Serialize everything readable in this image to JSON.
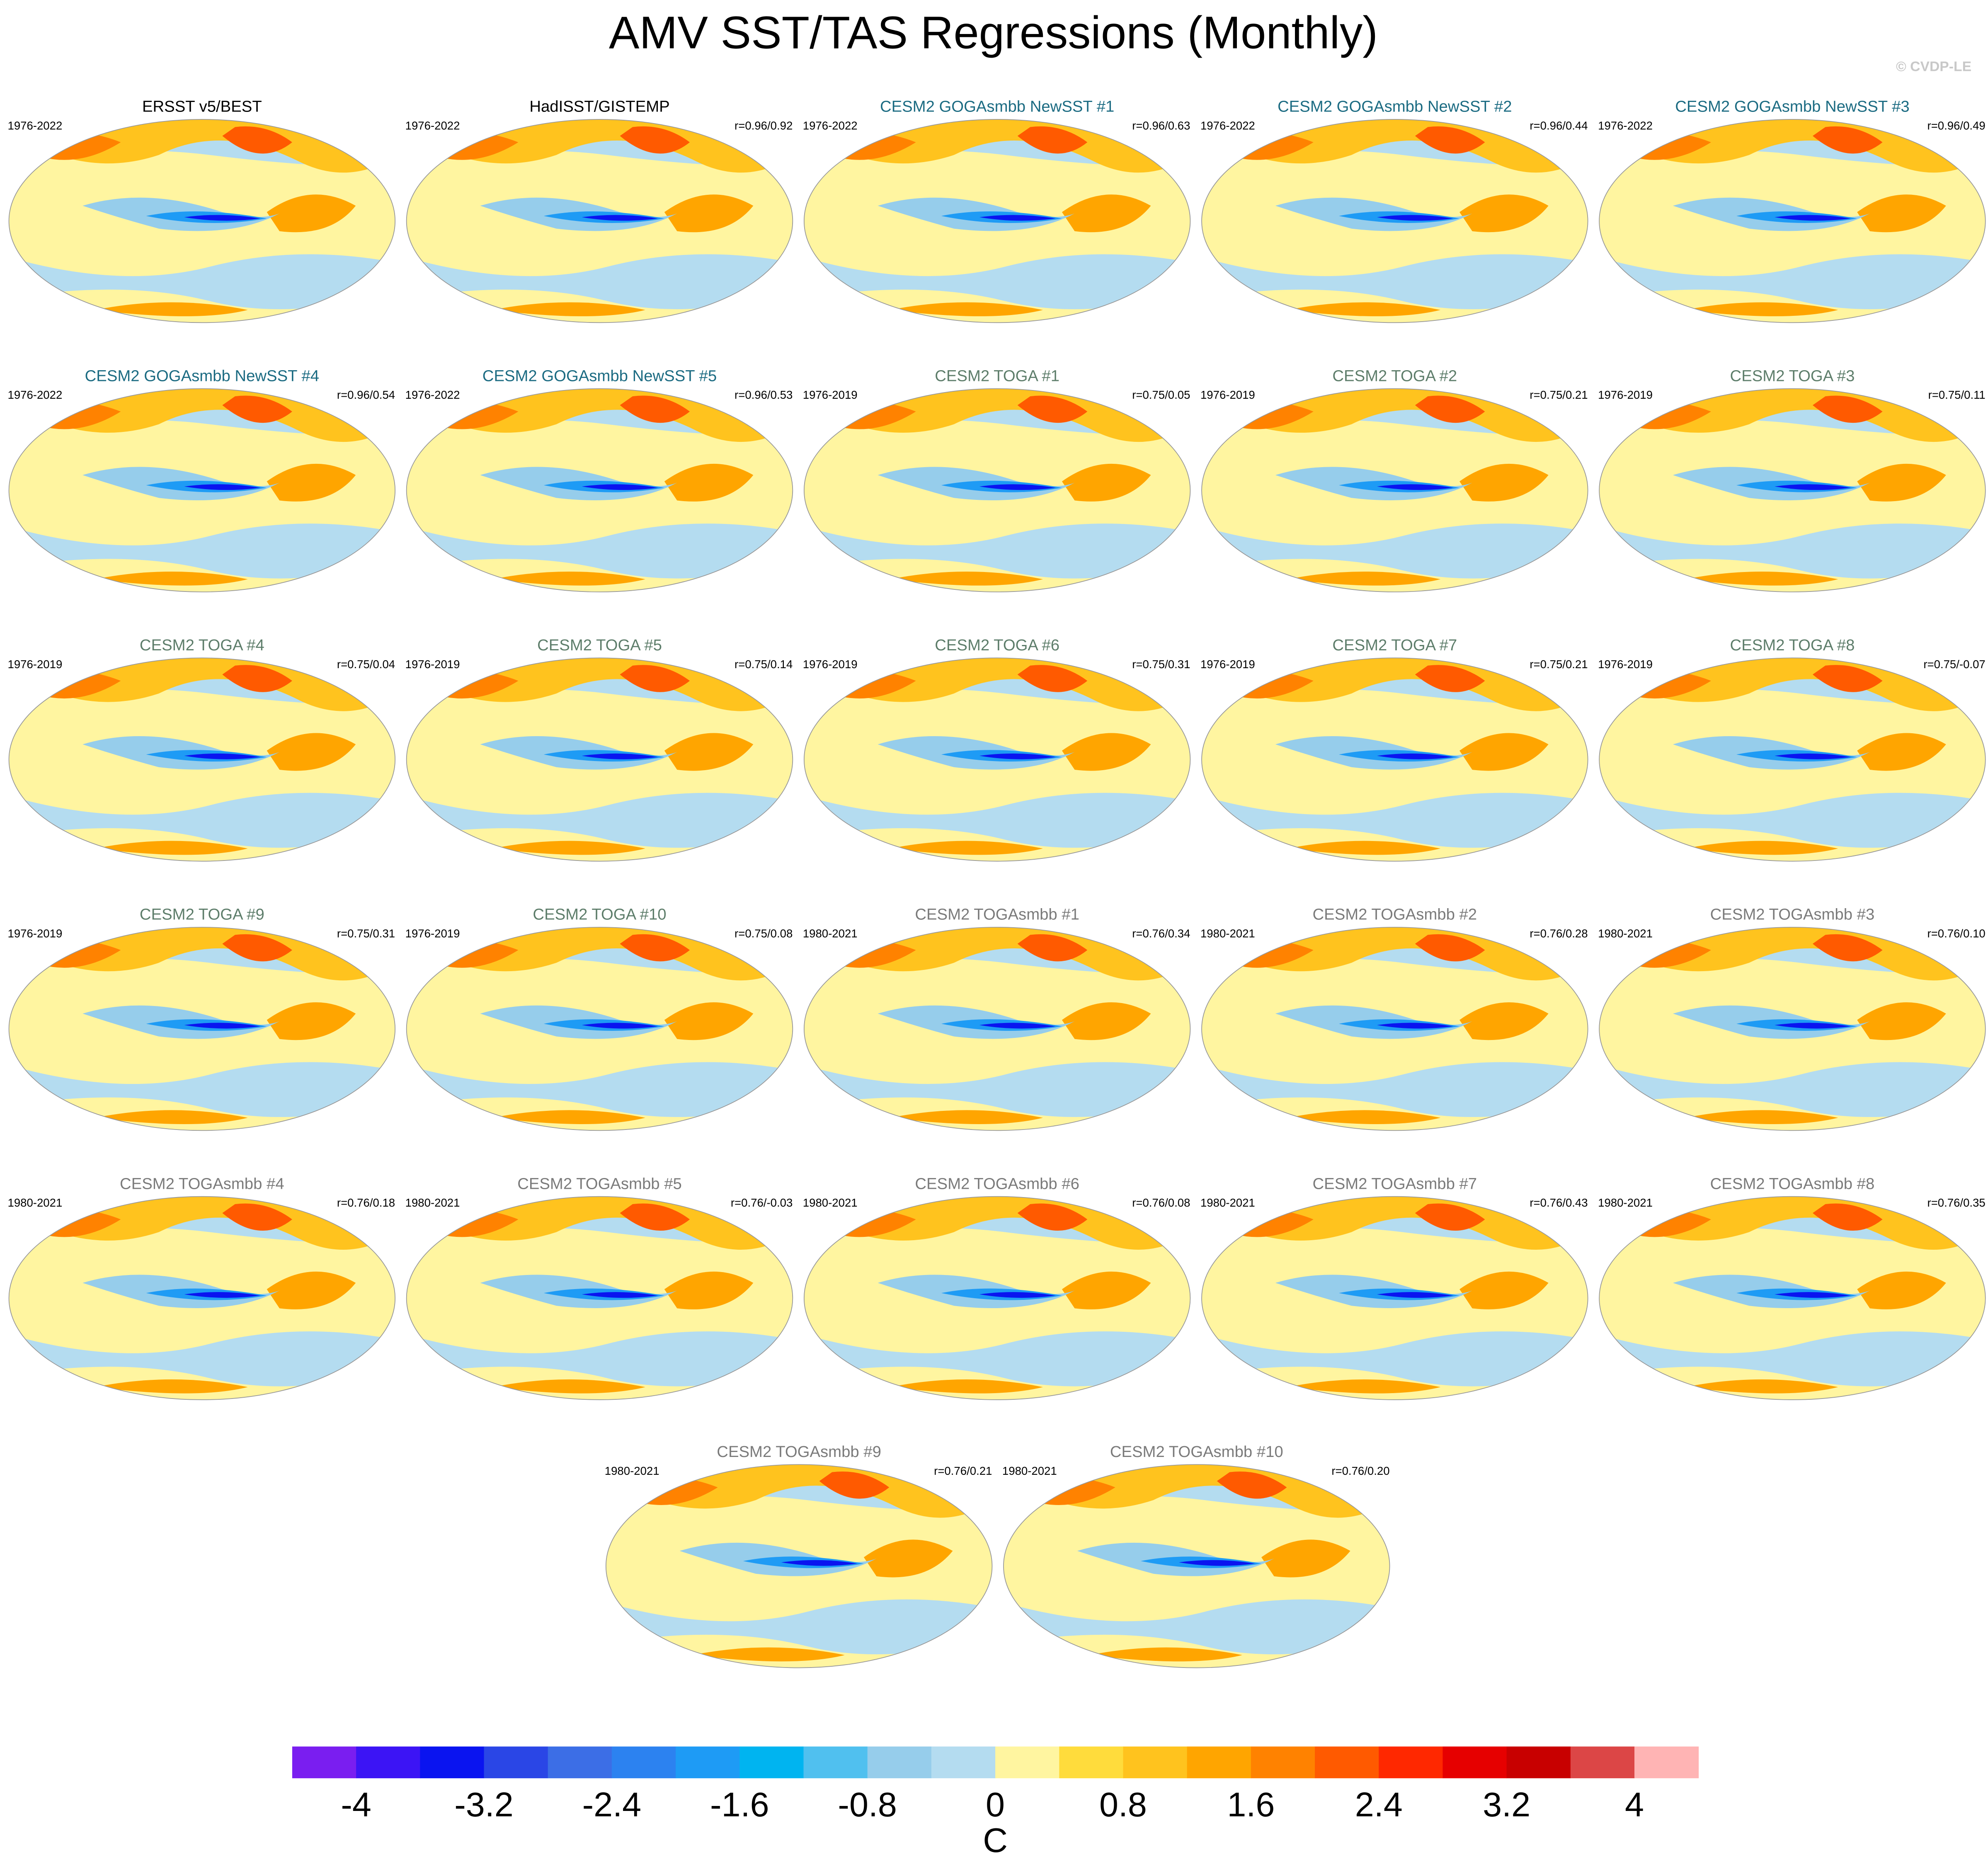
{
  "title": "AMV SST/TAS Regressions (Monthly)",
  "credit": "© CVDP-LE",
  "panels": [
    {
      "title": "ERSST v5/BEST",
      "years": "1976-2022",
      "color": "#000000"
    },
    {
      "title": "HadISST/GISTEMP",
      "years": "1976-2022",
      "r": "r=0.96/0.92",
      "color": "#000000"
    },
    {
      "title": "CESM2 GOGAsmbb NewSST #1",
      "years": "1976-2022",
      "r": "r=0.96/0.63",
      "color": "#1b6b82"
    },
    {
      "title": "CESM2 GOGAsmbb NewSST #2",
      "years": "1976-2022",
      "r": "r=0.96/0.44",
      "color": "#1b6b82"
    },
    {
      "title": "CESM2 GOGAsmbb NewSST #3",
      "years": "1976-2022",
      "r": "r=0.96/0.49",
      "color": "#1b6b82"
    },
    {
      "title": "CESM2 GOGAsmbb NewSST #4",
      "years": "1976-2022",
      "r": "r=0.96/0.54",
      "color": "#1b6b82"
    },
    {
      "title": "CESM2 GOGAsmbb NewSST #5",
      "years": "1976-2022",
      "r": "r=0.96/0.53",
      "color": "#1b6b82"
    },
    {
      "title": "CESM2 TOGA #1",
      "years": "1976-2019",
      "r": "r=0.75/0.05",
      "color": "#5d7d6a"
    },
    {
      "title": "CESM2 TOGA #2",
      "years": "1976-2019",
      "r": "r=0.75/0.21",
      "color": "#5d7d6a"
    },
    {
      "title": "CESM2 TOGA #3",
      "years": "1976-2019",
      "r": "r=0.75/0.11",
      "color": "#5d7d6a"
    },
    {
      "title": "CESM2 TOGA #4",
      "years": "1976-2019",
      "r": "r=0.75/0.04",
      "color": "#5d7d6a"
    },
    {
      "title": "CESM2 TOGA #5",
      "years": "1976-2019",
      "r": "r=0.75/0.14",
      "color": "#5d7d6a"
    },
    {
      "title": "CESM2 TOGA #6",
      "years": "1976-2019",
      "r": "r=0.75/0.31",
      "color": "#5d7d6a"
    },
    {
      "title": "CESM2 TOGA #7",
      "years": "1976-2019",
      "r": "r=0.75/0.21",
      "color": "#5d7d6a"
    },
    {
      "title": "CESM2 TOGA #8",
      "years": "1976-2019",
      "r": "r=0.75/-0.07",
      "color": "#5d7d6a"
    },
    {
      "title": "CESM2 TOGA #9",
      "years": "1976-2019",
      "r": "r=0.75/0.31",
      "color": "#5d7d6a"
    },
    {
      "title": "CESM2 TOGA #10",
      "years": "1976-2019",
      "r": "r=0.75/0.08",
      "color": "#5d7d6a"
    },
    {
      "title": "CESM2 TOGAsmbb #1",
      "years": "1980-2021",
      "r": "r=0.76/0.34",
      "color": "#7a7a7a"
    },
    {
      "title": "CESM2 TOGAsmbb #2",
      "years": "1980-2021",
      "r": "r=0.76/0.28",
      "color": "#7a7a7a"
    },
    {
      "title": "CESM2 TOGAsmbb #3",
      "years": "1980-2021",
      "r": "r=0.76/0.10",
      "color": "#7a7a7a"
    },
    {
      "title": "CESM2 TOGAsmbb #4",
      "years": "1980-2021",
      "r": "r=0.76/0.18",
      "color": "#7a7a7a"
    },
    {
      "title": "CESM2 TOGAsmbb #5",
      "years": "1980-2021",
      "r": "r=0.76/-0.03",
      "color": "#7a7a7a"
    },
    {
      "title": "CESM2 TOGAsmbb #6",
      "years": "1980-2021",
      "r": "r=0.76/0.08",
      "color": "#7a7a7a"
    },
    {
      "title": "CESM2 TOGAsmbb #7",
      "years": "1980-2021",
      "r": "r=0.76/0.43",
      "color": "#7a7a7a"
    },
    {
      "title": "CESM2 TOGAsmbb #8",
      "years": "1980-2021",
      "r": "r=0.76/0.35",
      "color": "#7a7a7a"
    },
    {
      "title": "CESM2 TOGAsmbb #9",
      "years": "1980-2021",
      "r": "r=0.76/0.21",
      "color": "#7a7a7a"
    },
    {
      "title": "CESM2 TOGAsmbb #10",
      "years": "1980-2021",
      "r": "r=0.76/0.20",
      "color": "#7a7a7a"
    }
  ],
  "colorbar": {
    "label": "C",
    "lim": [
      -4.4,
      4.4
    ],
    "ticks": [
      -4,
      -3.2,
      -2.4,
      -1.6,
      -0.8,
      0,
      0.8,
      1.6,
      2.4,
      3.2,
      4
    ],
    "colors": [
      "#7a1ef0",
      "#3c14f5",
      "#0a14f0",
      "#2a46e6",
      "#3c6ee6",
      "#2c82f0",
      "#1e9bf5",
      "#00b4f0",
      "#50c0ef",
      "#96cdeb",
      "#b4dcf0",
      "#fff5a0",
      "#ffdc3c",
      "#ffc31e",
      "#ffa500",
      "#ff8200",
      "#ff5a00",
      "#ff2800",
      "#e60000",
      "#c80000",
      "#dc4646",
      "#ffb4b4"
    ]
  }
}
